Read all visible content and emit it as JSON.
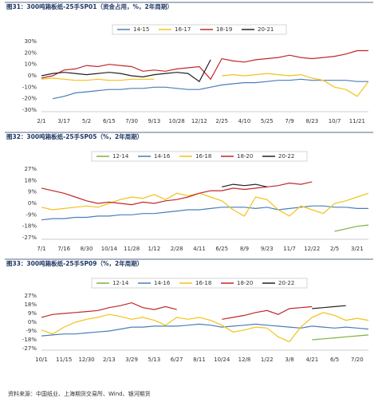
{
  "chart_data": [
    {
      "type": "line",
      "title": "图31：300吨箱板纸-25手SP01（资金占用，%，2年周期）",
      "categories": [
        "2/1",
        null,
        "3/17",
        null,
        "5/2",
        null,
        "6/15",
        null,
        "7/30",
        null,
        "9/13",
        null,
        "10/28",
        null,
        "12/12",
        null,
        "2/25",
        null,
        "4/10",
        null,
        "5/25",
        null,
        "7/9",
        null,
        "8/23",
        null,
        "10/7",
        null,
        "11/21",
        null
      ],
      "ylim": [
        -30,
        30
      ],
      "yticks": [
        {
          "value": 30,
          "label": "30%"
        },
        {
          "value": 20,
          "label": "20%"
        },
        {
          "value": 10,
          "label": "10%"
        },
        {
          "value": 0,
          "label": "0%"
        },
        {
          "value": -10,
          "label": "-10%"
        },
        {
          "value": -20,
          "label": "-20%"
        },
        {
          "value": -30,
          "label": "-30%"
        }
      ],
      "grid": false,
      "series": [
        {
          "name": "14-15",
          "color": "#4a7ebb",
          "values": [
            null,
            -20,
            -18,
            -15,
            -14,
            -13,
            -12,
            -12,
            -11,
            -11,
            -10,
            -10,
            -11,
            -12,
            -12,
            -10,
            -8,
            -7,
            -6,
            -6,
            -5,
            -4,
            -4,
            -3,
            -4,
            -4,
            -4,
            -4,
            -5,
            -5
          ]
        },
        {
          "name": "16-17",
          "color": "#f2c318",
          "values": [
            -3,
            -2,
            -3,
            -4,
            -4,
            -3,
            -4,
            -4,
            -3,
            -3,
            -3,
            null,
            null,
            null,
            null,
            null,
            0,
            1,
            0,
            1,
            2,
            1,
            0,
            1,
            -2,
            -4,
            -10,
            -12,
            -18,
            -5
          ]
        },
        {
          "name": "18-19",
          "color": "#c0282d",
          "values": [
            -2,
            0,
            5,
            6,
            9,
            8,
            10,
            9,
            8,
            4,
            5,
            4,
            6,
            7,
            8,
            -3,
            15,
            13,
            12,
            14,
            15,
            16,
            18,
            16,
            15,
            16,
            17,
            19,
            22,
            22
          ]
        },
        {
          "name": "20-21",
          "color": "#222222",
          "values": [
            0,
            2,
            3,
            2,
            1,
            2,
            3,
            2,
            0,
            -1,
            1,
            2,
            3,
            2,
            -5,
            14,
            null,
            null,
            null,
            null,
            null,
            null,
            null,
            null,
            null,
            null,
            null,
            null,
            null,
            null
          ]
        }
      ]
    },
    {
      "type": "line",
      "title": "图32：300吨箱板纸-25手SP05（%，2年周期）",
      "categories": [
        "7/1",
        null,
        "7/16",
        null,
        "8/30",
        null,
        "10/14",
        null,
        "11/28",
        null,
        "1/12",
        null,
        "2/28",
        null,
        "4/11",
        null,
        "6/25",
        null,
        "8/9",
        null,
        "9/23",
        null,
        "11/7",
        null,
        "12/22",
        null,
        "2/5",
        null,
        "3/21",
        null
      ],
      "ylim": [
        -27,
        27
      ],
      "yticks": [
        {
          "value": 27,
          "label": "27%"
        },
        {
          "value": 18,
          "label": "18%"
        },
        {
          "value": 9,
          "label": "9%"
        },
        {
          "value": 0,
          "label": "0%"
        },
        {
          "value": -9,
          "label": "-9%"
        },
        {
          "value": -18,
          "label": "-18%"
        },
        {
          "value": -27,
          "label": "-27%"
        }
      ],
      "grid": false,
      "series": [
        {
          "name": "12-14",
          "color": "#7cb342",
          "values": [
            null,
            null,
            null,
            null,
            null,
            null,
            null,
            null,
            null,
            null,
            null,
            null,
            null,
            null,
            null,
            null,
            null,
            null,
            null,
            null,
            null,
            null,
            null,
            null,
            null,
            null,
            -22,
            -20,
            -18,
            -17
          ]
        },
        {
          "name": "14-16",
          "color": "#4a7ebb",
          "values": [
            -13,
            -12,
            -12,
            -11,
            -11,
            -10,
            -10,
            -9,
            -9,
            -8,
            -8,
            -7,
            -6,
            -5,
            -5,
            -4,
            -3,
            -3,
            -3,
            -4,
            -3,
            -5,
            -4,
            -3,
            -2,
            -2,
            -3,
            -3,
            -4,
            -4
          ]
        },
        {
          "name": "16-18",
          "color": "#f2c318",
          "values": [
            -3,
            -5,
            -4,
            -3,
            -2,
            -3,
            0,
            3,
            5,
            4,
            7,
            3,
            8,
            6,
            8,
            5,
            2,
            -5,
            -10,
            5,
            3,
            -5,
            -10,
            -2,
            -5,
            -8,
            0,
            2,
            5,
            8
          ]
        },
        {
          "name": "18-20",
          "color": "#c0282d",
          "values": [
            12,
            10,
            8,
            5,
            2,
            0,
            1,
            0,
            -1,
            1,
            0,
            2,
            3,
            5,
            8,
            10,
            10,
            12,
            11,
            12,
            13,
            14,
            16,
            15,
            17,
            null,
            null,
            null,
            null,
            null
          ]
        },
        {
          "name": "20-22",
          "color": "#222222",
          "values": [
            null,
            null,
            null,
            null,
            null,
            null,
            null,
            null,
            null,
            null,
            null,
            null,
            null,
            null,
            null,
            null,
            13,
            15,
            14,
            15,
            13,
            null,
            null,
            null,
            null,
            null,
            null,
            null,
            null,
            null
          ]
        }
      ]
    },
    {
      "type": "line",
      "title": "图33：300吨箱板纸-25手SP09（%，2年周期）",
      "categories": [
        "10/1",
        null,
        "11/15",
        null,
        "12/30",
        null,
        "2/13",
        null,
        "3/29",
        null,
        "5/13",
        null,
        "6/27",
        null,
        "8/11",
        null,
        "10/24",
        null,
        "12/8",
        null,
        "1/22",
        null,
        "3/8",
        null,
        "4/21",
        null,
        "6/5",
        null,
        "7/20",
        null
      ],
      "ylim": [
        -27,
        27
      ],
      "yticks": [
        {
          "value": 27,
          "label": "27%"
        },
        {
          "value": 18,
          "label": "18%"
        },
        {
          "value": 9,
          "label": "9%"
        },
        {
          "value": 0,
          "label": "0%"
        },
        {
          "value": -9,
          "label": "-9%"
        },
        {
          "value": -18,
          "label": "-18%"
        },
        {
          "value": -27,
          "label": "-27%"
        }
      ],
      "grid": false,
      "series": [
        {
          "name": "12-14",
          "color": "#7cb342",
          "values": [
            null,
            null,
            null,
            null,
            null,
            null,
            null,
            null,
            null,
            null,
            null,
            null,
            null,
            null,
            null,
            null,
            null,
            null,
            null,
            null,
            null,
            null,
            null,
            null,
            -18,
            -17,
            -16,
            -15,
            -14,
            -13
          ]
        },
        {
          "name": "14-16",
          "color": "#4a7ebb",
          "values": [
            -14,
            -13,
            -12,
            -12,
            -11,
            -10,
            -9,
            -7,
            -5,
            -5,
            -4,
            -4,
            -4,
            -3,
            -2,
            -3,
            -5,
            -4,
            -3,
            -2,
            -3,
            -4,
            -5,
            -6,
            -4,
            -5,
            -6,
            -5,
            -6,
            -7
          ]
        },
        {
          "name": "16-18",
          "color": "#f2c318",
          "values": [
            -8,
            -12,
            -5,
            0,
            3,
            5,
            8,
            6,
            3,
            5,
            2,
            -3,
            5,
            3,
            5,
            2,
            -3,
            -10,
            -8,
            -5,
            -6,
            -15,
            -20,
            -5,
            5,
            10,
            7,
            2,
            4,
            2
          ]
        },
        {
          "name": "18-20",
          "color": "#c0282d",
          "values": [
            5,
            8,
            9,
            10,
            11,
            12,
            15,
            17,
            20,
            15,
            13,
            16,
            13,
            null,
            null,
            null,
            3,
            5,
            7,
            10,
            12,
            8,
            14,
            15,
            16,
            null,
            null,
            null,
            null,
            null
          ]
        },
        {
          "name": "20-22",
          "color": "#222222",
          "values": [
            null,
            null,
            null,
            null,
            null,
            null,
            null,
            null,
            null,
            null,
            null,
            null,
            null,
            null,
            null,
            null,
            null,
            null,
            null,
            null,
            null,
            null,
            null,
            null,
            14,
            15,
            16,
            17,
            null,
            null
          ]
        }
      ]
    }
  ],
  "source": "资料来源：中国纸业、上海期货交易所、Wind、银河期货"
}
